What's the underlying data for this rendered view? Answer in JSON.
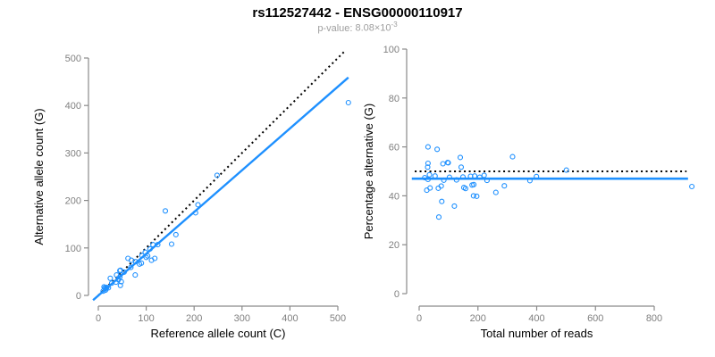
{
  "title": "rs112527442 - ENSG00000110917",
  "subtitle": {
    "label": "p-value:",
    "mantissa": "8.08",
    "multiplier": "×10",
    "exponent": "-3"
  },
  "colors": {
    "point": "#1E90FF",
    "fit_line": "#1E90FF",
    "reference_line": "#000000",
    "axis": "#8a8a8a",
    "tick_label": "#808080",
    "axis_title": "#000000",
    "subtitle_text": "#9e9e9e"
  },
  "chart_data": [
    {
      "type": "scatter",
      "name": "allele-counts",
      "xlabel": "Reference allele count (C)",
      "ylabel": "Alternative allele count (G)",
      "xlim": [
        0,
        515
      ],
      "ylim": [
        0,
        513
      ],
      "xticks": [
        0,
        100,
        200,
        300,
        400,
        500
      ],
      "yticks": [
        0,
        100,
        200,
        300,
        400,
        500
      ],
      "grid": false,
      "legend": "none",
      "marker": "open-circle",
      "points": [
        [
          12,
          18
        ],
        [
          25,
          36
        ],
        [
          14,
          15
        ],
        [
          14,
          16
        ],
        [
          38,
          43
        ],
        [
          46,
          53
        ],
        [
          45,
          52
        ],
        [
          62,
          78
        ],
        [
          69,
          74
        ],
        [
          18,
          17
        ],
        [
          28,
          26
        ],
        [
          10,
          9
        ],
        [
          16,
          14
        ],
        [
          21,
          16
        ],
        [
          15,
          11
        ],
        [
          37,
          28
        ],
        [
          42,
          33
        ],
        [
          45,
          39
        ],
        [
          54,
          49
        ],
        [
          68,
          59
        ],
        [
          78,
          71
        ],
        [
          86,
          66
        ],
        [
          90,
          68
        ],
        [
          100,
          80
        ],
        [
          103,
          83
        ],
        [
          91,
          84
        ],
        [
          98,
          91
        ],
        [
          108,
          98
        ],
        [
          114,
          107
        ],
        [
          124,
          107
        ],
        [
          111,
          74
        ],
        [
          118,
          78
        ],
        [
          153,
          108
        ],
        [
          162,
          128
        ],
        [
          140,
          178
        ],
        [
          48,
          29
        ],
        [
          77,
          43
        ],
        [
          46,
          21
        ],
        [
          203,
          174
        ],
        [
          208,
          191
        ],
        [
          248,
          253
        ],
        [
          522,
          406
        ]
      ],
      "lines": [
        {
          "name": "identity-line",
          "style": "dotted",
          "color": "#000000",
          "width": 2,
          "from": [
            0,
            0
          ],
          "to": [
            513,
            513
          ]
        },
        {
          "name": "fit-line",
          "style": "solid",
          "color": "#1E90FF",
          "width": 2.4,
          "from": [
            -11,
            -10
          ],
          "to": [
            522,
            459
          ]
        }
      ]
    },
    {
      "type": "scatter",
      "name": "percentage-vs-reads",
      "xlabel": "Total number of reads",
      "ylabel": "Percentage alternative (G)",
      "xlim": [
        0,
        940
      ],
      "ylim": [
        0,
        100
      ],
      "xticks": [
        0,
        200,
        400,
        600,
        800
      ],
      "yticks": [
        0,
        20,
        40,
        60,
        80,
        100
      ],
      "grid": false,
      "legend": "none",
      "marker": "open-circle",
      "points": [
        [
          30,
          60.0
        ],
        [
          61,
          59.0
        ],
        [
          29,
          51.7
        ],
        [
          30,
          53.3
        ],
        [
          81,
          53.1
        ],
        [
          99,
          53.5
        ],
        [
          97,
          53.6
        ],
        [
          140,
          55.7
        ],
        [
          143,
          51.7
        ],
        [
          35,
          48.6
        ],
        [
          54,
          48.1
        ],
        [
          19,
          47.4
        ],
        [
          30,
          46.7
        ],
        [
          37,
          43.2
        ],
        [
          26,
          42.3
        ],
        [
          65,
          43.1
        ],
        [
          75,
          44.0
        ],
        [
          84,
          46.4
        ],
        [
          103,
          47.6
        ],
        [
          127,
          46.5
        ],
        [
          149,
          47.7
        ],
        [
          152,
          43.4
        ],
        [
          158,
          43.0
        ],
        [
          180,
          44.4
        ],
        [
          186,
          44.6
        ],
        [
          175,
          48.0
        ],
        [
          189,
          48.1
        ],
        [
          206,
          47.6
        ],
        [
          221,
          48.4
        ],
        [
          231,
          46.3
        ],
        [
          185,
          40.0
        ],
        [
          196,
          39.8
        ],
        [
          261,
          41.4
        ],
        [
          290,
          44.1
        ],
        [
          318,
          56.0
        ],
        [
          77,
          37.7
        ],
        [
          120,
          35.8
        ],
        [
          67,
          31.3
        ],
        [
          377,
          46.2
        ],
        [
          399,
          47.9
        ],
        [
          501,
          50.5
        ],
        [
          928,
          43.8
        ]
      ],
      "lines": [
        {
          "name": "expected-50-percent-line",
          "style": "dotted",
          "color": "#000000",
          "width": 2,
          "from": [
            -15,
            50
          ],
          "to": [
            910,
            50
          ]
        },
        {
          "name": "mean-percentage-line",
          "style": "solid",
          "color": "#1E90FF",
          "width": 2.6,
          "from": [
            -25,
            47
          ],
          "to": [
            915,
            47
          ]
        }
      ]
    }
  ]
}
